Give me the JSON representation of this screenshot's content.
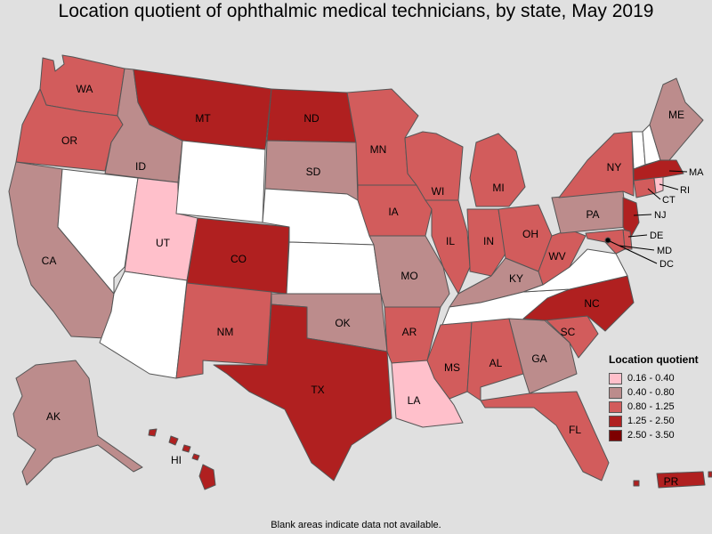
{
  "title": "Location quotient of ophthalmic medical technicians, by state, May 2019",
  "footnote": "Blank areas indicate data not available.",
  "legend": {
    "title": "Location quotient",
    "items": [
      {
        "label": "0.16 - 0.40",
        "color": "#ffc0cb"
      },
      {
        "label": "0.40 - 0.80",
        "color": "#bc8c8c"
      },
      {
        "label": "0.80 - 1.25",
        "color": "#d25c5c"
      },
      {
        "label": "1.25 - 2.50",
        "color": "#b02020"
      },
      {
        "label": "2.50 - 3.50",
        "color": "#7d0000"
      }
    ]
  },
  "no_data_color": "#ffffff",
  "states": {
    "WA": {
      "label": "WA",
      "bin": 2
    },
    "OR": {
      "label": "OR",
      "bin": 2
    },
    "CA": {
      "label": "CA",
      "bin": 1
    },
    "ID": {
      "label": "ID",
      "bin": 1
    },
    "NV": {
      "label": "",
      "bin": null
    },
    "UT": {
      "label": "UT",
      "bin": 0
    },
    "AZ": {
      "label": "",
      "bin": null
    },
    "MT": {
      "label": "MT",
      "bin": 3
    },
    "WY": {
      "label": "",
      "bin": null
    },
    "CO": {
      "label": "CO",
      "bin": 3
    },
    "NM": {
      "label": "NM",
      "bin": 2
    },
    "ND": {
      "label": "ND",
      "bin": 3
    },
    "SD": {
      "label": "SD",
      "bin": 1
    },
    "NE": {
      "label": "",
      "bin": null
    },
    "KS": {
      "label": "",
      "bin": null
    },
    "OK": {
      "label": "OK",
      "bin": 1
    },
    "TX": {
      "label": "TX",
      "bin": 3
    },
    "MN": {
      "label": "MN",
      "bin": 2
    },
    "IA": {
      "label": "IA",
      "bin": 2
    },
    "MO": {
      "label": "MO",
      "bin": 1
    },
    "AR": {
      "label": "AR",
      "bin": 2
    },
    "LA": {
      "label": "LA",
      "bin": 0
    },
    "WI": {
      "label": "WI",
      "bin": 2
    },
    "IL": {
      "label": "IL",
      "bin": 2
    },
    "MI": {
      "label": "MI",
      "bin": 2
    },
    "IN": {
      "label": "IN",
      "bin": 2
    },
    "OH": {
      "label": "OH",
      "bin": 2
    },
    "KY": {
      "label": "KY",
      "bin": 1
    },
    "TN": {
      "label": "",
      "bin": null
    },
    "MS": {
      "label": "MS",
      "bin": 2
    },
    "AL": {
      "label": "AL",
      "bin": 2
    },
    "GA": {
      "label": "GA",
      "bin": 1
    },
    "FL": {
      "label": "FL",
      "bin": 2
    },
    "SC": {
      "label": "SC",
      "bin": 2
    },
    "NC": {
      "label": "NC",
      "bin": 3
    },
    "VA": {
      "label": "",
      "bin": null
    },
    "WV": {
      "label": "WV",
      "bin": 2
    },
    "PA": {
      "label": "PA",
      "bin": 1
    },
    "NY": {
      "label": "NY",
      "bin": 2
    },
    "VT": {
      "label": "",
      "bin": null
    },
    "NH": {
      "label": "",
      "bin": null
    },
    "ME": {
      "label": "ME",
      "bin": 1
    },
    "MA": {
      "label": "MA",
      "bin": 3
    },
    "RI": {
      "label": "RI",
      "bin": 0
    },
    "CT": {
      "label": "CT",
      "bin": 2
    },
    "NJ": {
      "label": "NJ",
      "bin": 3
    },
    "DE": {
      "label": "DE",
      "bin": 2
    },
    "MD": {
      "label": "MD",
      "bin": 2
    },
    "DC": {
      "label": "DC",
      "bin": 4
    },
    "AK": {
      "label": "AK",
      "bin": 1
    },
    "HI": {
      "label": "HI",
      "bin": 3
    },
    "PR": {
      "label": "PR",
      "bin": 3
    }
  }
}
